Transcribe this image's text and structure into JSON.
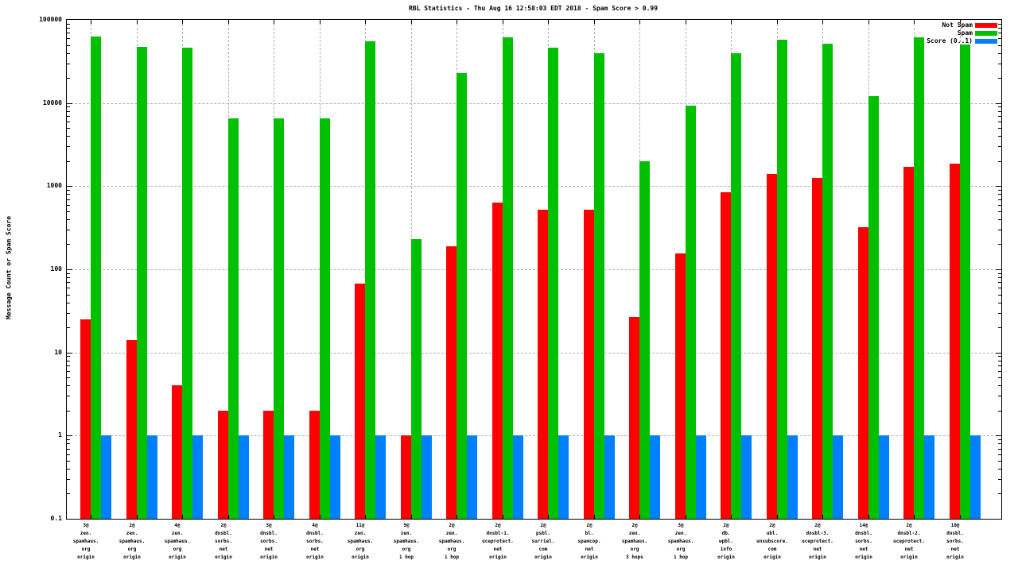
{
  "title": "RBL Statistics - Thu Aug 16 12:58:03 EDT 2018 - Spam Score > 0.99",
  "y_axis": {
    "label": "Message Count or Spam Score",
    "scale": "log",
    "ticks": [
      "100000",
      "10000",
      "1000",
      "100",
      "10",
      "1",
      "0.1"
    ]
  },
  "legend": {
    "position": "top-right",
    "items": [
      {
        "label": "Not Spam",
        "color": "#ff0000"
      },
      {
        "label": "Spam",
        "color": "#00c000"
      },
      {
        "label": "Score (0..1)",
        "color": "#0080ff"
      }
    ]
  },
  "colors": {
    "not_spam": "#ff0000",
    "spam": "#00c000",
    "score": "#0080ff",
    "grid": "#b0b0b0",
    "axis": "#000000"
  },
  "chart_data": {
    "type": "bar",
    "title": "RBL Statistics - Thu Aug 16 12:58:03 EDT 2018 - Spam Score > 0.99",
    "ylabel": "Message Count or Spam Score",
    "yscale": "log",
    "ylim": [
      0.1,
      100000
    ],
    "grid": true,
    "legend_position": "top-right",
    "categories": [
      [
        "3@",
        "zen.",
        "spamhaus.",
        "org",
        "origin"
      ],
      [
        "2@",
        "zen.",
        "spamhaus.",
        "org",
        "origin"
      ],
      [
        "4@",
        "zen.",
        "spamhaus.",
        "org",
        "origin"
      ],
      [
        "2@",
        "dnsbl.",
        "sorbs.",
        "net",
        "origin"
      ],
      [
        "3@",
        "dnsbl.",
        "sorbs.",
        "net",
        "origin"
      ],
      [
        "4@",
        "dnsbl.",
        "sorbs.",
        "net",
        "origin"
      ],
      [
        "11@",
        "zen.",
        "spamhaus.",
        "org",
        "origin"
      ],
      [
        "9@",
        "zen.",
        "spamhaus.",
        "org",
        "1 hop"
      ],
      [
        "2@",
        "zen.",
        "spamhaus.",
        "org",
        "1 hop"
      ],
      [
        "2@",
        "dnsbl-1.",
        "uceprotect.",
        "net",
        "origin"
      ],
      [
        "2@",
        "psbl.",
        "surriel.",
        "com",
        "origin"
      ],
      [
        "2@",
        "bl.",
        "spamcop.",
        "net",
        "origin"
      ],
      [
        "2@",
        "zen.",
        "spamhaus.",
        "org",
        "3 hops"
      ],
      [
        "3@",
        "zen.",
        "spamhaus.",
        "org",
        "1 hop"
      ],
      [
        "2@",
        "db.",
        "wpbl.",
        "info",
        "origin"
      ],
      [
        "2@",
        "ubl.",
        "unsubscore.",
        "com",
        "origin"
      ],
      [
        "2@",
        "dnsbl-3.",
        "uceprotect.",
        "net",
        "origin"
      ],
      [
        "14@",
        "dnsbl.",
        "sorbs.",
        "net",
        "origin"
      ],
      [
        "2@",
        "dnsbl-2.",
        "uceprotect.",
        "net",
        "origin"
      ],
      [
        "10@",
        "dnsbl.",
        "sorbs.",
        "net",
        "origin"
      ]
    ],
    "series": [
      {
        "name": "Not Spam",
        "color": "#ff0000",
        "values": [
          25,
          14,
          4,
          2,
          2,
          2,
          67,
          1,
          190,
          630,
          520,
          520,
          27,
          155,
          840,
          1400,
          1250,
          320,
          1700,
          1850
        ]
      },
      {
        "name": "Spam",
        "color": "#00c000",
        "values": [
          63000,
          47000,
          46000,
          6600,
          6600,
          6600,
          55000,
          230,
          23000,
          62000,
          46000,
          40000,
          2000,
          9200,
          40000,
          58000,
          52000,
          12000,
          62000,
          51000
        ]
      },
      {
        "name": "Score (0..1)",
        "color": "#0080ff",
        "values": [
          1,
          1,
          1,
          1,
          1,
          1,
          1,
          1,
          1,
          1,
          1,
          1,
          1,
          1,
          1,
          1,
          1,
          1,
          1,
          1
        ]
      }
    ]
  }
}
